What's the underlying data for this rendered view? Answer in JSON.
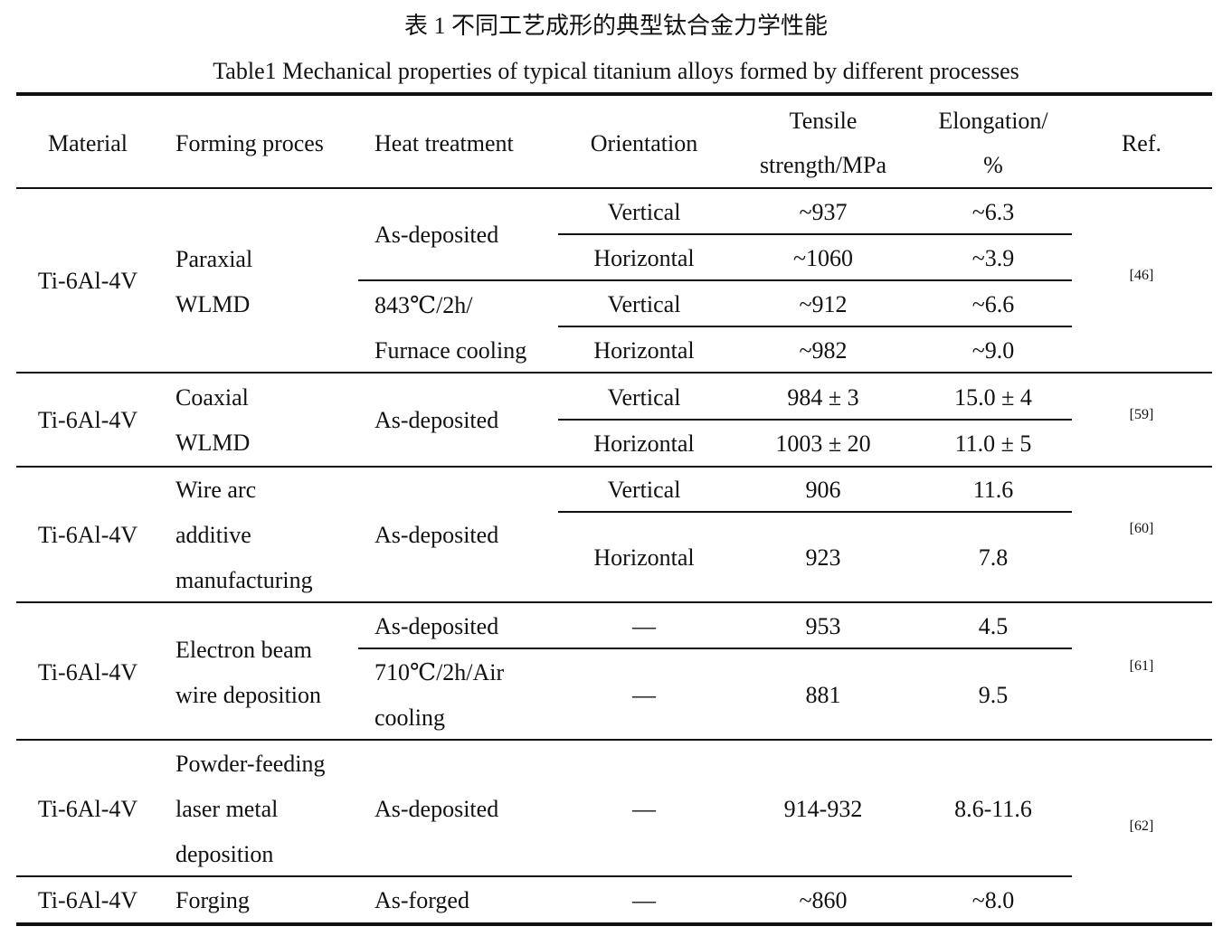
{
  "caption": {
    "zh": "表  1  不同工艺成形的典型钛合金力学性能",
    "en": "Table1 Mechanical properties of typical titanium alloys formed by different processes"
  },
  "header": {
    "material": "Material",
    "forming": "Forming proces",
    "heat": "Heat treatment",
    "orientation": "Orientation",
    "tensile": [
      "Tensile",
      "strength/MPa"
    ],
    "elongation": [
      "Elongation/",
      "%"
    ],
    "ref": "Ref."
  },
  "groups": [
    {
      "material": "Ti-6Al-4V",
      "forming": [
        "Paraxial",
        "WLMD"
      ],
      "heat": [
        "As-deposited",
        "843℃/2h/",
        "Furnace cooling"
      ],
      "rows": [
        [
          "Vertical",
          "~937",
          "~6.3"
        ],
        [
          "Horizontal",
          "~1060",
          "~3.9"
        ],
        [
          "Vertical",
          "~912",
          "~6.6"
        ],
        [
          "Horizontal",
          "~982",
          "~9.0"
        ]
      ],
      "ref": "[46]"
    },
    {
      "material": "Ti-6Al-4V",
      "forming": [
        "Coaxial",
        "WLMD"
      ],
      "heat": [
        "As-deposited"
      ],
      "rows": [
        [
          "Vertical",
          "984 ± 3",
          "15.0 ± 4"
        ],
        [
          "Horizontal",
          "1003 ± 20",
          "11.0 ± 5"
        ]
      ],
      "ref": "[59]"
    },
    {
      "material": "Ti-6Al-4V",
      "forming": [
        "Wire arc",
        "additive",
        "manufacturing"
      ],
      "heat": [
        "As-deposited"
      ],
      "rows": [
        [
          "Vertical",
          "906",
          "11.6"
        ],
        [
          "Horizontal",
          "923",
          "7.8"
        ]
      ],
      "ref": "[60]"
    },
    {
      "material": "Ti-6Al-4V",
      "forming": [
        "Electron beam",
        "wire deposition"
      ],
      "heat": [
        "As-deposited",
        "710℃/2h/Air",
        "cooling"
      ],
      "rows": [
        [
          "—",
          "953",
          "4.5"
        ],
        [
          "—",
          "881",
          "9.5"
        ]
      ],
      "ref": "[61]"
    },
    {
      "material": "Ti-6Al-4V",
      "forming": [
        "Powder-feeding",
        "laser metal",
        "deposition"
      ],
      "heat": [
        "As-deposited"
      ],
      "rows": [
        [
          "—",
          "914-932",
          "8.6-11.6"
        ]
      ],
      "ref": "[62]"
    },
    {
      "material": "Ti-6Al-4V",
      "forming": [
        "Forging"
      ],
      "heat": [
        "As-forged"
      ],
      "rows": [
        [
          "—",
          "~860",
          "~8.0"
        ]
      ]
    }
  ]
}
